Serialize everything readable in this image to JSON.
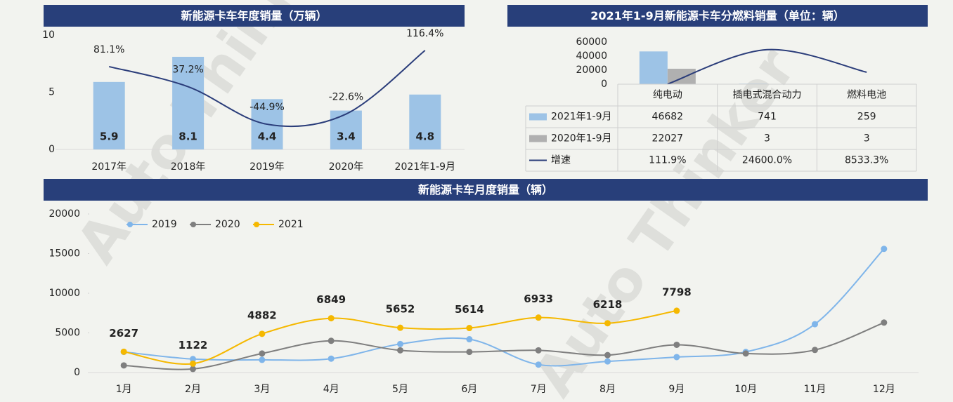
{
  "watermark": "Auto Thinker",
  "chart_data": [
    {
      "type": "bar",
      "title": "新能源卡车年度销量（万辆）",
      "categories": [
        "2017年",
        "2018年",
        "2019年",
        "2020年",
        "2021年1-9月"
      ],
      "series": [
        {
          "color": "#9dc3e6",
          "values": [
            5.9,
            8.1,
            4.4,
            3.4,
            4.8
          ],
          "data_labels": true
        },
        {
          "type": "line",
          "axis": "y2",
          "color": "#2b3d7a",
          "values": [
            81.1,
            37.2,
            -44.9,
            -22.6,
            116.4
          ],
          "value_labels": [
            "81.1%",
            "37.2%",
            "-44.9%",
            "-22.6%",
            "116.4%"
          ],
          "data_labels": true
        }
      ],
      "ylim": [
        0,
        10
      ],
      "yticks": [
        0,
        5,
        10
      ],
      "y2lim": [
        -100,
        150
      ]
    },
    {
      "type": "bar",
      "title": "2021年1-9月新能源卡车分燃料销量（单位：辆）",
      "categories": [
        "纯电动",
        "插电式混合动力",
        "燃料电池"
      ],
      "series": [
        {
          "name": "2021年1-9月",
          "color": "#9dc3e6",
          "values": [
            46682,
            741,
            259
          ]
        },
        {
          "name": "2020年1-9月",
          "color": "#b0b0b0",
          "values": [
            22027,
            3,
            3
          ]
        },
        {
          "name": "增速",
          "type": "line",
          "axis": "y2",
          "color": "#2b3d7a",
          "values": [
            111.9,
            24600.0,
            8533.3
          ],
          "value_labels": [
            "111.9%",
            "24600.0%",
            "8533.3%"
          ]
        }
      ],
      "ylim": [
        0,
        60000
      ],
      "yticks": [
        0,
        20000,
        40000,
        60000
      ],
      "y2lim": [
        0,
        30000
      ],
      "data_table": true
    },
    {
      "type": "line",
      "title": "新能源卡车月度销量（辆）",
      "categories": [
        "1月",
        "2月",
        "3月",
        "4月",
        "5月",
        "6月",
        "7月",
        "8月",
        "9月",
        "10月",
        "11月",
        "12月"
      ],
      "series": [
        {
          "name": "2019",
          "color": "#7fb5ea",
          "values": [
            2600,
            1700,
            1600,
            1750,
            3600,
            4200,
            1000,
            1400,
            1950,
            2600,
            6100,
            15600
          ]
        },
        {
          "name": "2020",
          "color": "#7f7f7f",
          "values": [
            900,
            450,
            2400,
            4000,
            2800,
            2600,
            2800,
            2200,
            3500,
            2400,
            2850,
            6300
          ]
        },
        {
          "name": "2021",
          "color": "#f5b800",
          "values": [
            2627,
            1122,
            4882,
            6849,
            5652,
            5614,
            6933,
            6218,
            7798,
            null,
            null,
            null
          ],
          "data_labels": true
        }
      ],
      "ylim": [
        0,
        20000
      ],
      "yticks": [
        0,
        5000,
        10000,
        15000,
        20000
      ]
    }
  ]
}
